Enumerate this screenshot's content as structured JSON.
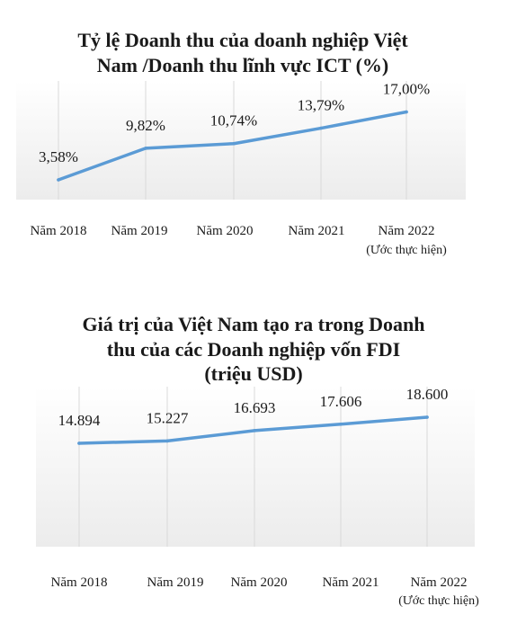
{
  "chart_data": [
    {
      "type": "line",
      "title_lines": [
        "Tỷ lệ Doanh thu của doanh nghiệp Việt",
        "Nam /Doanh thu lĩnh vực ICT (%)"
      ],
      "categories": [
        "Năm 2018",
        "Năm 2019",
        "Năm 2020",
        "Năm 2021",
        "Năm 2022"
      ],
      "category_notes": [
        "",
        "",
        "",
        "",
        "(Ước thực hiện)"
      ],
      "values": [
        3.58,
        9.82,
        10.74,
        13.79,
        17.0
      ],
      "value_labels": [
        "3,58%",
        "9,82%",
        "10,74%",
        "13,79%",
        "17,00%"
      ],
      "ylim": [
        0,
        20
      ],
      "grid": "vertical",
      "line_color": "#5b9bd5",
      "plot_bg": "#f2f2f2"
    },
    {
      "type": "line",
      "title_lines": [
        "Giá trị của Việt Nam tạo ra trong Doanh",
        "thu của các Doanh nghiệp vốn FDI",
        "(triệu USD)"
      ],
      "categories": [
        "Năm 2018",
        "Năm 2019",
        "Năm 2020",
        "Năm 2021",
        "Năm 2022"
      ],
      "category_notes": [
        "",
        "",
        "",
        "",
        "(Ước thực hiện)"
      ],
      "values": [
        14894,
        15227,
        16693,
        17606,
        18600
      ],
      "value_labels": [
        "14.894",
        "15.227",
        "16.693",
        "17.606",
        "18.600"
      ],
      "ylim": [
        0,
        20000
      ],
      "grid": "vertical",
      "line_color": "#5b9bd5",
      "plot_bg": "#f2f2f2"
    }
  ]
}
